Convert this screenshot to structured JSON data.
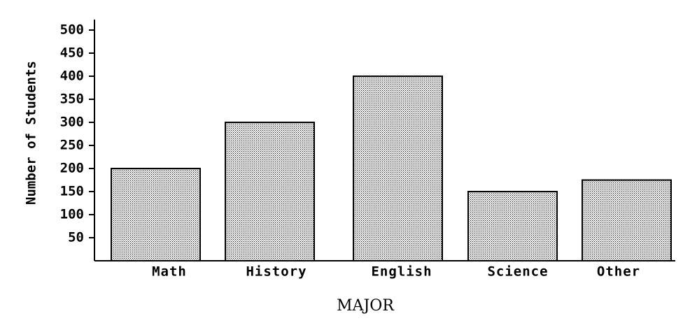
{
  "chart_data": {
    "type": "bar",
    "categories": [
      "Math",
      "History",
      "English",
      "Science",
      "Other"
    ],
    "values": [
      200,
      300,
      400,
      150,
      175
    ],
    "title": "",
    "xlabel": "MAJOR",
    "ylabel": "Number of Students",
    "ylim": [
      0,
      500
    ],
    "yticks": [
      50,
      100,
      150,
      200,
      250,
      300,
      350,
      400,
      450,
      500
    ],
    "ytick_labels": [
      "50",
      "100",
      "150",
      "200",
      "250",
      "300",
      "350",
      "400",
      "450",
      "500"
    ],
    "grid": false,
    "legend": "none",
    "bar_fill": "stippled",
    "colors": {
      "bar_fill_base": "#ffffff",
      "bar_dots": "#000000",
      "axis": "#000000"
    }
  }
}
